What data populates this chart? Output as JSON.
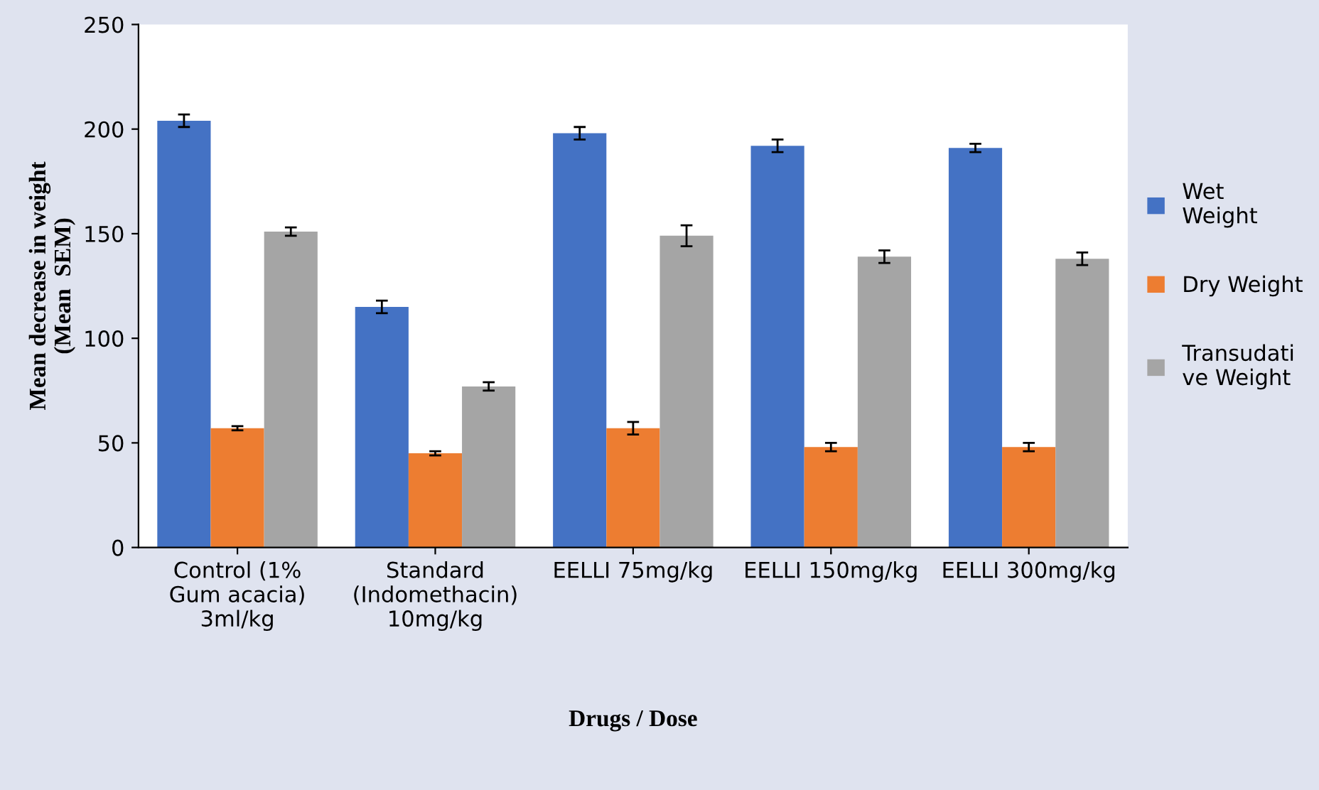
{
  "chart_data": {
    "type": "bar",
    "xlabel": "Drugs / Dose",
    "ylabel": "Mean decrease in weight\n(Mean  SEM)",
    "categories": [
      "Control (1%\nGum acacia)\n3ml/kg",
      "Standard\n(Indomethacin)\n10mg/kg",
      "EELLI 75mg/kg",
      "EELLI 150mg/kg",
      "EELLI 300mg/kg"
    ],
    "series": [
      {
        "name": "Wet\nWeight",
        "color": "#4472c4",
        "values": [
          204,
          115,
          198,
          192,
          191
        ],
        "errors": [
          3,
          3,
          3,
          3,
          2
        ]
      },
      {
        "name": "Dry Weight",
        "color": "#ed7d31",
        "values": [
          57,
          45,
          57,
          48,
          48
        ],
        "errors": [
          1,
          1,
          3,
          2,
          2
        ]
      },
      {
        "name": "Transudati\nve Weight",
        "color": "#a5a5a5",
        "values": [
          151,
          77,
          149,
          139,
          138
        ],
        "errors": [
          2,
          2,
          5,
          3,
          3
        ]
      }
    ],
    "ylim": [
      0,
      250
    ],
    "yticks": [
      0,
      50,
      100,
      150,
      200,
      250
    ],
    "grid": false,
    "legend": "right"
  }
}
